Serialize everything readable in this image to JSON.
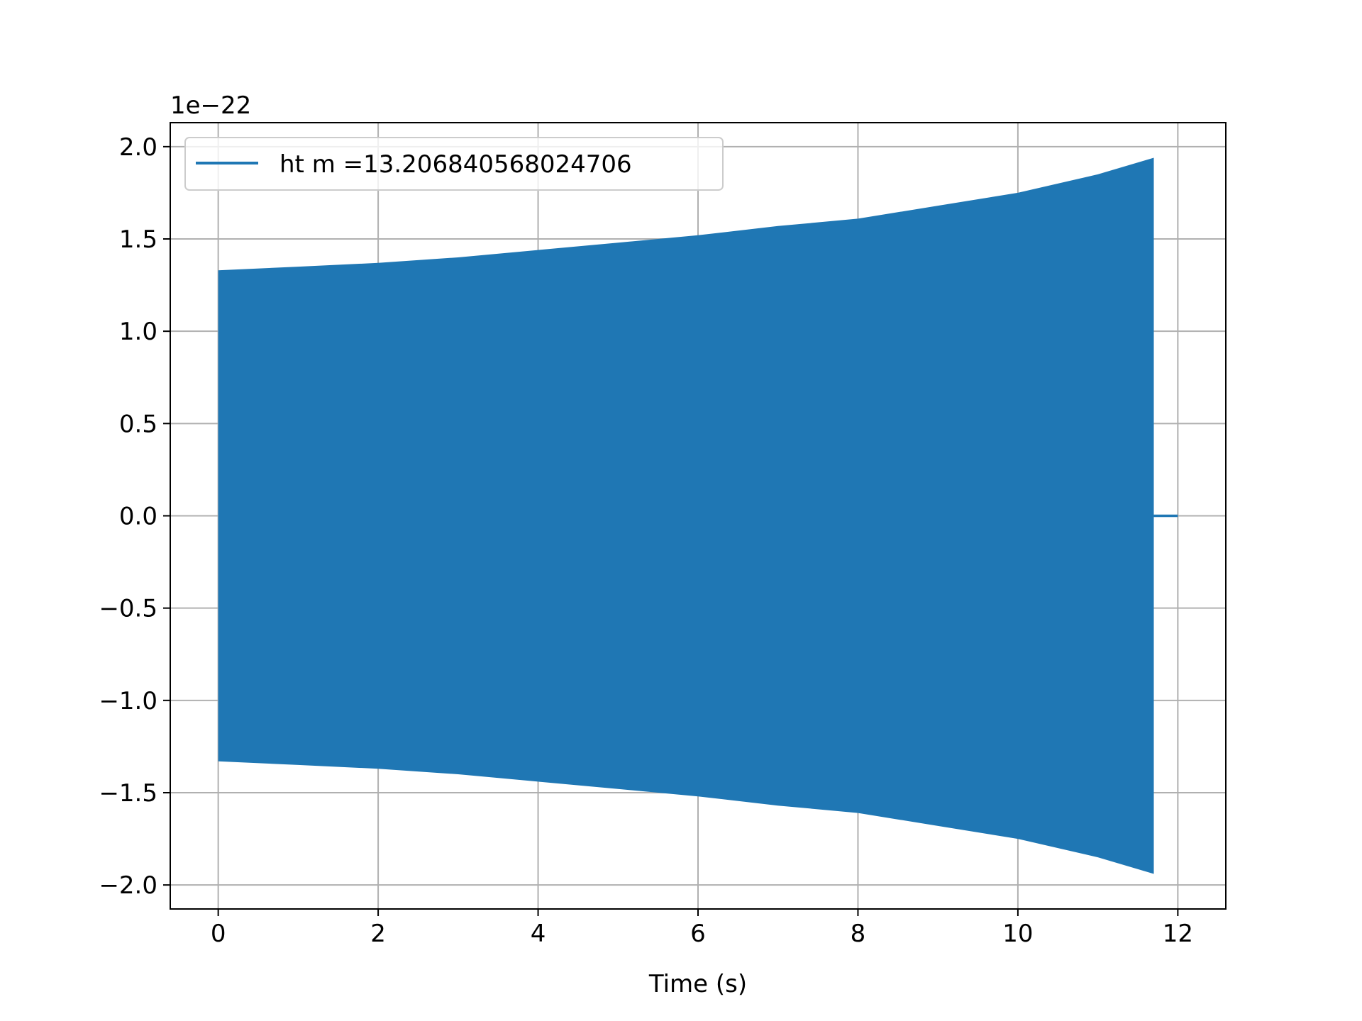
{
  "chart_data": {
    "type": "line",
    "title": "",
    "xlabel": "Time (s)",
    "ylabel": "",
    "offset_text": "1e−22",
    "xlim": [
      -0.6,
      12.6
    ],
    "ylim": [
      -2.13,
      2.13
    ],
    "x_ticks": [
      0,
      2,
      4,
      6,
      8,
      10,
      12
    ],
    "x_tick_labels": [
      "0",
      "2",
      "4",
      "6",
      "8",
      "10",
      "12"
    ],
    "y_ticks": [
      -2.0,
      -1.5,
      -1.0,
      -0.5,
      0.0,
      0.5,
      1.0,
      1.5,
      2.0
    ],
    "y_tick_labels": [
      "−2.0",
      "−1.5",
      "−1.0",
      "−0.5",
      "0.0",
      "0.5",
      "1.0",
      "1.5",
      "2.0"
    ],
    "grid": true,
    "legend_position": "upper-left",
    "series": [
      {
        "name": "ht m =13.206840568024706",
        "color": "#1f77b4",
        "signal_start": 0.0,
        "signal_end": 11.7,
        "trailing_zero_end": 12.0,
        "x_envelope": [
          0.0,
          1.0,
          2.0,
          3.0,
          4.0,
          5.0,
          6.0,
          7.0,
          8.0,
          9.0,
          10.0,
          11.0,
          11.7
        ],
        "upper_envelope": [
          1.33,
          1.35,
          1.37,
          1.4,
          1.44,
          1.48,
          1.52,
          1.57,
          1.61,
          1.68,
          1.75,
          1.85,
          1.94
        ],
        "lower_envelope": [
          -1.33,
          -1.35,
          -1.37,
          -1.4,
          -1.44,
          -1.48,
          -1.52,
          -1.57,
          -1.61,
          -1.68,
          -1.75,
          -1.85,
          -1.94
        ]
      }
    ]
  }
}
